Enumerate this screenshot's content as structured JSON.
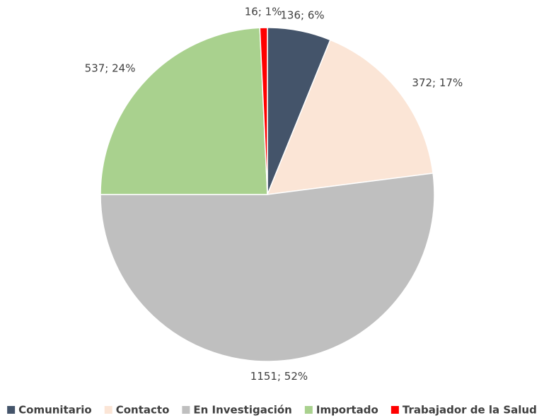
{
  "chart_data": {
    "type": "pie",
    "categories": [
      "Comunitario",
      "Contacto",
      "En Investigación",
      "Importado",
      "Trabajador de la Salud"
    ],
    "values": [
      136,
      372,
      1151,
      537,
      16
    ],
    "value_labels": [
      "136; 6%",
      "372; 17%",
      "1151; 52%",
      "537; 24%",
      "16; 1%"
    ],
    "colors": [
      "#44546a",
      "#fbe5d6",
      "#bfbfbf",
      "#a9d18e",
      "#ff0000"
    ],
    "legend": "bottom"
  }
}
